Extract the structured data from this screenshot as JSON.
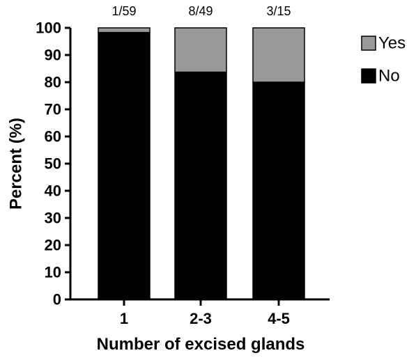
{
  "chart_data": {
    "type": "bar",
    "stacked": true,
    "categories": [
      "1",
      "2-3",
      "4-5"
    ],
    "annotations": [
      "1/59",
      "8/49",
      "3/15"
    ],
    "series": [
      {
        "name": "No",
        "color": "#000000",
        "values": [
          98.3,
          83.7,
          80.0
        ]
      },
      {
        "name": "Yes",
        "color": "#999999",
        "values": [
          1.7,
          16.3,
          20.0
        ]
      }
    ],
    "xlabel": "Number of excised glands",
    "ylabel": "Percent (%)",
    "ylim": [
      0,
      100
    ],
    "yticks": [
      "0",
      "10",
      "20",
      "30",
      "40",
      "50",
      "60",
      "70",
      "80",
      "90",
      "100"
    ],
    "legend_position": "top-right",
    "grid": false
  }
}
